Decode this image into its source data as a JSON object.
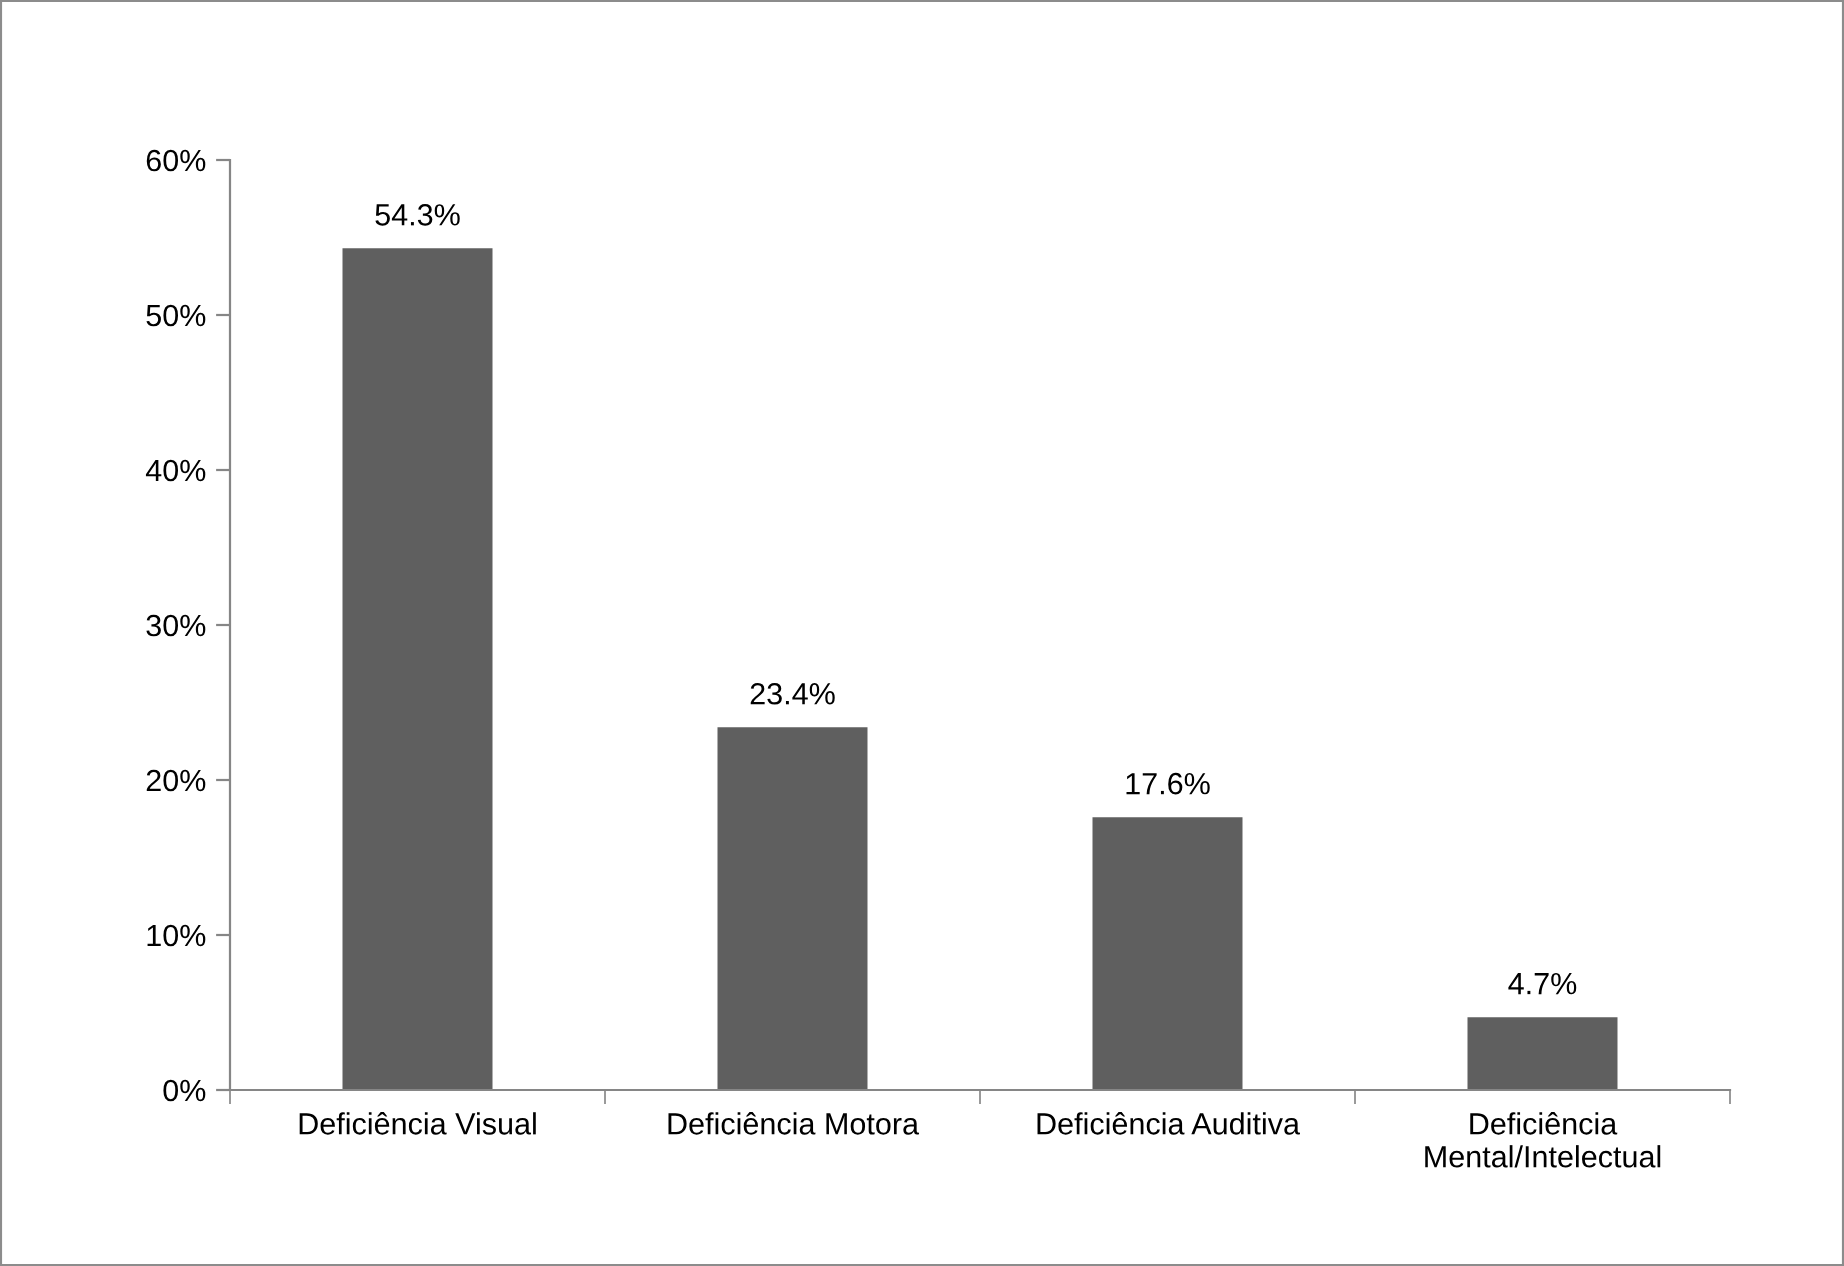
{
  "chart_data": {
    "type": "bar",
    "categories": [
      "Deficiência Visual",
      "Deficiência Motora",
      "Deficiência Auditiva",
      "Deficiência\nMental/Intelectual"
    ],
    "values": [
      54.3,
      23.4,
      17.6,
      4.7
    ],
    "value_labels": [
      "54.3%",
      "23.4%",
      "17.6%",
      "4.7%"
    ],
    "color": "#5f5f5f",
    "ylim": [
      0,
      60
    ],
    "yticks": [
      {
        "value": 0,
        "label": "0%"
      },
      {
        "value": 10,
        "label": "10%"
      },
      {
        "value": 20,
        "label": "20%"
      },
      {
        "value": 30,
        "label": "30%"
      },
      {
        "value": 40,
        "label": "40%"
      },
      {
        "value": 50,
        "label": "50%"
      },
      {
        "value": 60,
        "label": "60%"
      }
    ],
    "grid": false,
    "legend": false
  }
}
